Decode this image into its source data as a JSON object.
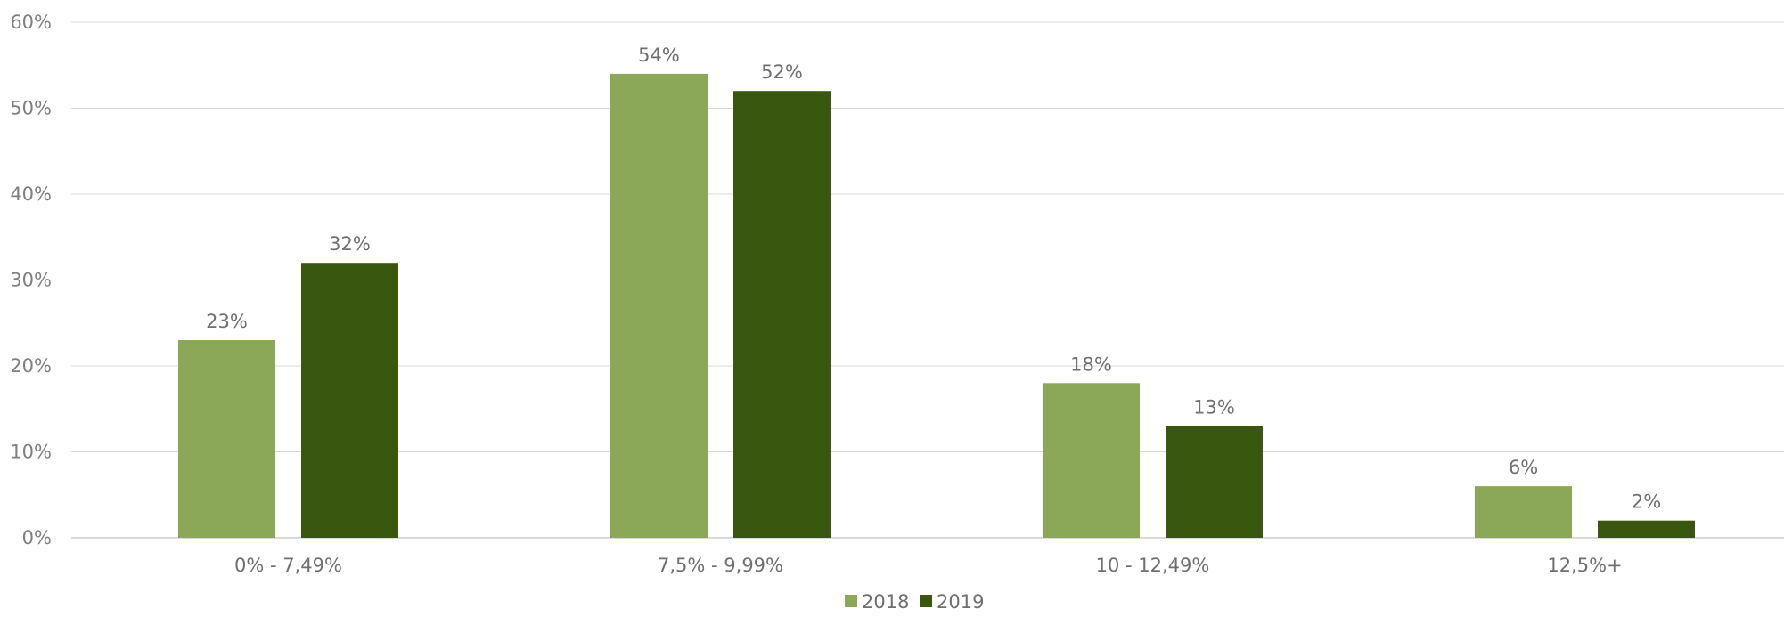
{
  "chart_data": {
    "type": "bar",
    "categories": [
      "0% - 7,49%",
      "7,5% - 9,99%",
      "10 - 12,49%",
      "12,5%+"
    ],
    "series": [
      {
        "name": "2018",
        "values": [
          23,
          54,
          18,
          6
        ],
        "labels": [
          "23%",
          "54%",
          "18%",
          "6%"
        ],
        "color": "#8aa857"
      },
      {
        "name": "2019",
        "values": [
          32,
          52,
          13,
          2
        ],
        "labels": [
          "32%",
          "52%",
          "13%",
          "2%"
        ],
        "color": "#3a5710"
      }
    ],
    "yTicks": [
      "0%",
      "10%",
      "20%",
      "30%",
      "40%",
      "50%",
      "60%"
    ],
    "ylim": [
      0,
      60
    ],
    "grid": true,
    "legend_position": "bottom-center"
  }
}
